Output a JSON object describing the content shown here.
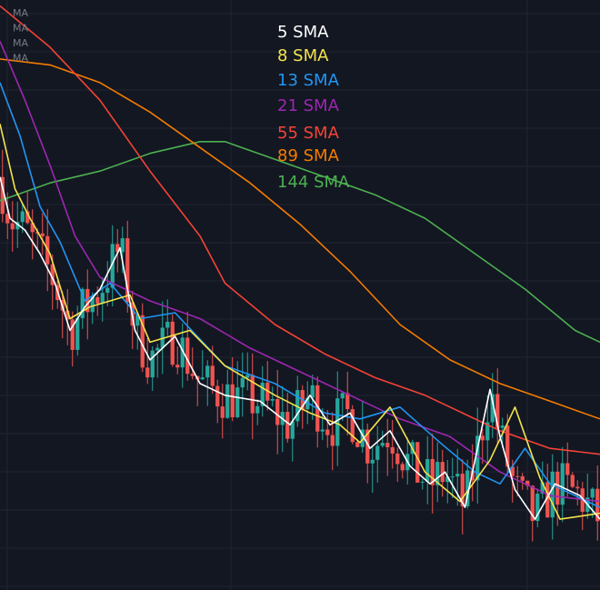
{
  "chart_data": {
    "type": "candlestick",
    "x_count": 120,
    "price_range": [
      0,
      100
    ],
    "colors": {
      "background": "#131722",
      "grid": "#1f2433",
      "candle_up": "#26a69a",
      "candle_down": "#ef5350"
    },
    "ma_tags": [
      "MA",
      "MA",
      "MA",
      "MA"
    ],
    "legend": [
      {
        "label": "5 SMA",
        "color": "#ffffff"
      },
      {
        "label": "8 SMA",
        "color": "#f5e34a"
      },
      {
        "label": "13 SMA",
        "color": "#2196f3"
      },
      {
        "label": "21 SMA",
        "color": "#9c27b0"
      },
      {
        "label": "55 SMA",
        "color": "#f44336"
      },
      {
        "label": "89 SMA",
        "color": "#f57c00"
      },
      {
        "label": "144 SMA",
        "color": "#4caf50"
      }
    ],
    "series": [
      {
        "name": "144 SMA",
        "color": "#4caf50",
        "points": [
          [
            0,
            66
          ],
          [
            10,
            69
          ],
          [
            20,
            71
          ],
          [
            30,
            74
          ],
          [
            40,
            76
          ],
          [
            45,
            76
          ],
          [
            55,
            73
          ],
          [
            65,
            70
          ],
          [
            75,
            67
          ],
          [
            85,
            63
          ],
          [
            95,
            57
          ],
          [
            105,
            51
          ],
          [
            115,
            44
          ],
          [
            120,
            42
          ]
        ]
      },
      {
        "name": "89 SMA",
        "color": "#f57c00",
        "points": [
          [
            0,
            90
          ],
          [
            10,
            89
          ],
          [
            20,
            86
          ],
          [
            30,
            81
          ],
          [
            40,
            75
          ],
          [
            50,
            69
          ],
          [
            60,
            62
          ],
          [
            70,
            54
          ],
          [
            80,
            45
          ],
          [
            90,
            39
          ],
          [
            100,
            35
          ],
          [
            110,
            32
          ],
          [
            120,
            29
          ]
        ]
      },
      {
        "name": "55 SMA",
        "color": "#f44336",
        "points": [
          [
            0,
            99
          ],
          [
            10,
            92
          ],
          [
            20,
            83
          ],
          [
            30,
            71
          ],
          [
            40,
            60
          ],
          [
            45,
            52
          ],
          [
            55,
            45
          ],
          [
            65,
            40
          ],
          [
            75,
            36
          ],
          [
            85,
            33
          ],
          [
            95,
            29
          ],
          [
            100,
            27
          ],
          [
            110,
            24
          ],
          [
            120,
            23
          ]
        ]
      },
      {
        "name": "21 SMA",
        "color": "#9c27b0",
        "points": [
          [
            0,
            93
          ],
          [
            5,
            83
          ],
          [
            10,
            72
          ],
          [
            15,
            60
          ],
          [
            20,
            53
          ],
          [
            30,
            49
          ],
          [
            40,
            46
          ],
          [
            50,
            41
          ],
          [
            60,
            37
          ],
          [
            70,
            33
          ],
          [
            80,
            29
          ],
          [
            90,
            26
          ],
          [
            100,
            20
          ],
          [
            110,
            16
          ],
          [
            120,
            15
          ]
        ]
      },
      {
        "name": "13 SMA",
        "color": "#2196f3",
        "points": [
          [
            0,
            86
          ],
          [
            4,
            77
          ],
          [
            8,
            65
          ],
          [
            12,
            59
          ],
          [
            17,
            49
          ],
          [
            22,
            52
          ],
          [
            28,
            46
          ],
          [
            35,
            47
          ],
          [
            45,
            38
          ],
          [
            55,
            35
          ],
          [
            65,
            30
          ],
          [
            72,
            29
          ],
          [
            80,
            31
          ],
          [
            88,
            25
          ],
          [
            95,
            20
          ],
          [
            100,
            18
          ],
          [
            105,
            24
          ],
          [
            110,
            18
          ],
          [
            120,
            14
          ]
        ]
      },
      {
        "name": "8 SMA",
        "color": "#f5e34a",
        "points": [
          [
            0,
            79
          ],
          [
            3,
            68
          ],
          [
            6,
            63
          ],
          [
            10,
            57
          ],
          [
            14,
            46
          ],
          [
            18,
            48
          ],
          [
            26,
            50
          ],
          [
            30,
            42
          ],
          [
            38,
            44
          ],
          [
            45,
            38
          ],
          [
            55,
            33
          ],
          [
            62,
            30
          ],
          [
            68,
            28
          ],
          [
            72,
            25
          ],
          [
            78,
            31
          ],
          [
            85,
            20
          ],
          [
            92,
            15
          ],
          [
            98,
            22
          ],
          [
            103,
            31
          ],
          [
            108,
            19
          ],
          [
            112,
            12
          ],
          [
            120,
            13
          ]
        ]
      },
      {
        "name": "5 SMA",
        "color": "#ffffff",
        "points": [
          [
            0,
            70
          ],
          [
            2,
            63
          ],
          [
            5,
            61
          ],
          [
            8,
            57
          ],
          [
            11,
            52
          ],
          [
            14,
            44
          ],
          [
            17,
            48
          ],
          [
            20,
            51
          ],
          [
            24,
            58
          ],
          [
            27,
            44
          ],
          [
            30,
            39
          ],
          [
            35,
            43
          ],
          [
            40,
            35
          ],
          [
            45,
            33
          ],
          [
            52,
            32
          ],
          [
            58,
            28
          ],
          [
            62,
            33
          ],
          [
            66,
            28
          ],
          [
            70,
            30
          ],
          [
            74,
            24
          ],
          [
            78,
            27
          ],
          [
            82,
            21
          ],
          [
            86,
            18
          ],
          [
            89,
            20
          ],
          [
            93,
            14
          ],
          [
            96,
            26
          ],
          [
            98,
            34
          ],
          [
            100,
            26
          ],
          [
            103,
            17
          ],
          [
            107,
            12
          ],
          [
            111,
            18
          ],
          [
            116,
            16
          ],
          [
            120,
            12
          ]
        ]
      }
    ]
  }
}
